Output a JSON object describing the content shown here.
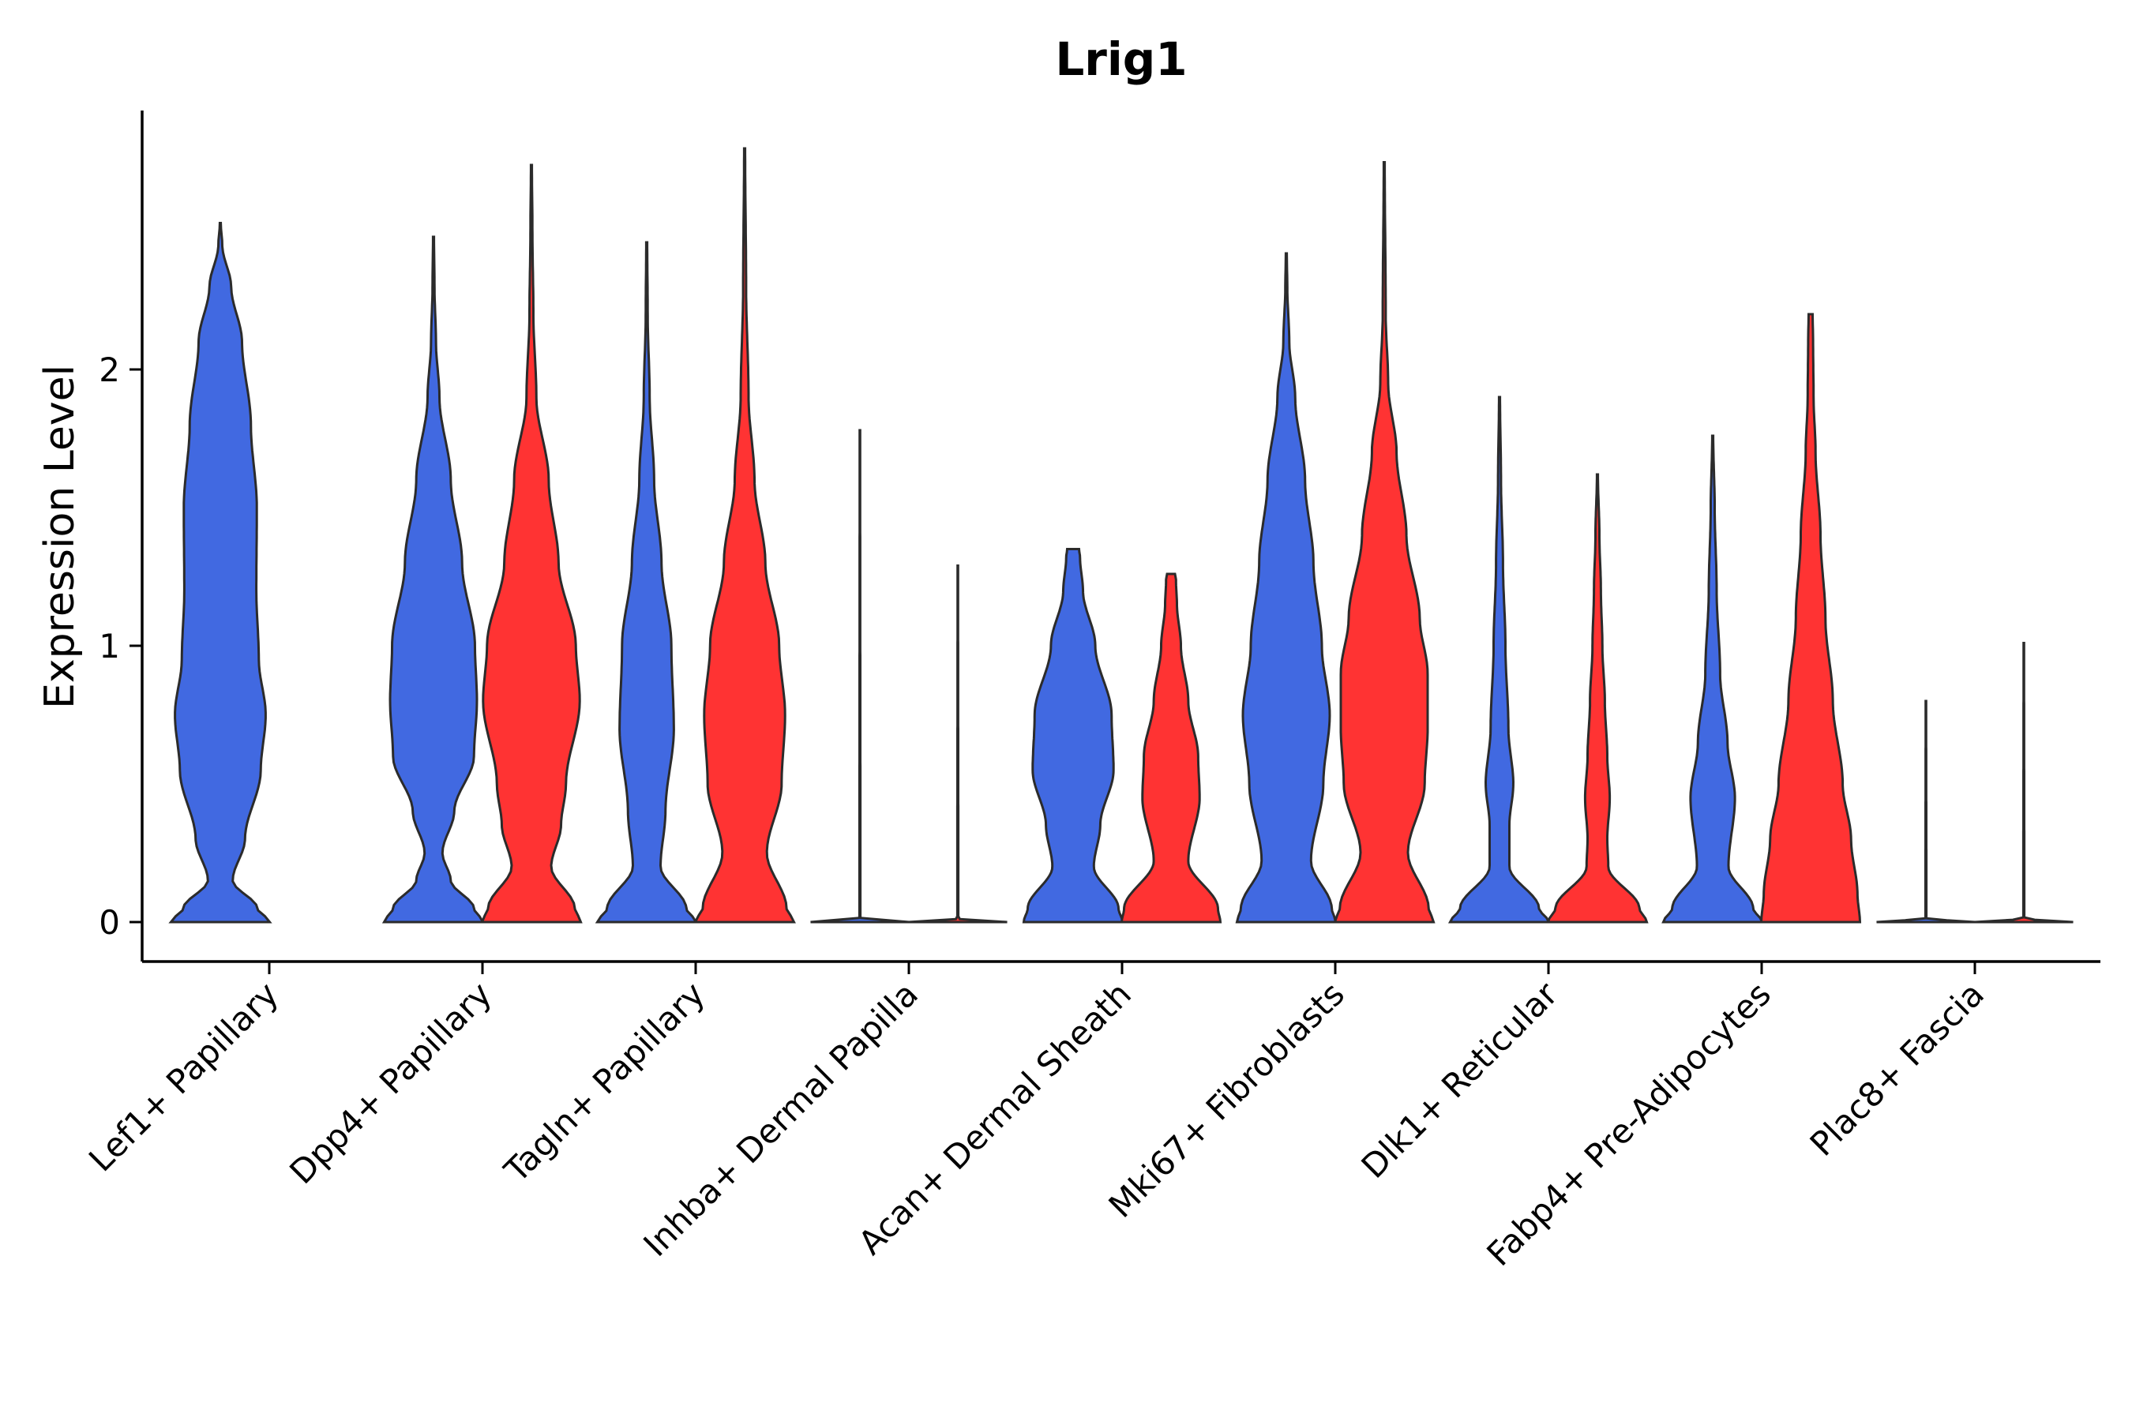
{
  "chart_data": {
    "type": "violin",
    "title": "Lrig1",
    "xlabel": "",
    "ylabel": "Expression Level",
    "ylim": [
      -0.14,
      2.95
    ],
    "yticks": [
      0,
      1,
      2
    ],
    "grid": false,
    "legend": "none",
    "colors": {
      "group1": "#4169E1",
      "group2": "#FF3333",
      "outline": "#2b2b2b"
    },
    "categories": [
      "Lef1+ Papillary",
      "Dpp4+ Papillary",
      "Tagln+ Papillary",
      "Inhba+ Dermal Papilla",
      "Acan+ Dermal Sheath",
      "Mki67+ Fibroblasts",
      "Dlk1+ Reticular",
      "Fabp4+ Pre-Adipocytes",
      "Plac8+ Fascia"
    ],
    "violins": [
      {
        "category": 0,
        "group": 1,
        "max": 2.53,
        "profile": [
          [
            0,
            1
          ],
          [
            0.05,
            0.75
          ],
          [
            0.15,
            0.25
          ],
          [
            0.3,
            0.5
          ],
          [
            0.55,
            0.82
          ],
          [
            0.75,
            0.92
          ],
          [
            0.95,
            0.78
          ],
          [
            1.2,
            0.73
          ],
          [
            1.5,
            0.74
          ],
          [
            1.8,
            0.62
          ],
          [
            2.1,
            0.44
          ],
          [
            2.3,
            0.22
          ],
          [
            2.45,
            0.04
          ],
          [
            2.53,
            0.01
          ]
        ]
      },
      {
        "category": 1,
        "group": 1,
        "max": 2.48,
        "profile": [
          [
            0,
            1
          ],
          [
            0.05,
            0.82
          ],
          [
            0.15,
            0.35
          ],
          [
            0.25,
            0.18
          ],
          [
            0.4,
            0.42
          ],
          [
            0.6,
            0.82
          ],
          [
            0.8,
            0.88
          ],
          [
            1.0,
            0.84
          ],
          [
            1.3,
            0.58
          ],
          [
            1.6,
            0.35
          ],
          [
            1.9,
            0.12
          ],
          [
            2.1,
            0.05
          ],
          [
            2.3,
            0.02
          ],
          [
            2.48,
            0.01
          ]
        ]
      },
      {
        "category": 1,
        "group": 2,
        "max": 2.74,
        "profile": [
          [
            0,
            1
          ],
          [
            0.05,
            0.88
          ],
          [
            0.2,
            0.4
          ],
          [
            0.35,
            0.6
          ],
          [
            0.5,
            0.7
          ],
          [
            0.8,
            0.98
          ],
          [
            1.0,
            0.9
          ],
          [
            1.3,
            0.55
          ],
          [
            1.6,
            0.35
          ],
          [
            1.9,
            0.1
          ],
          [
            2.2,
            0.04
          ],
          [
            2.5,
            0.02
          ],
          [
            2.74,
            0.01
          ]
        ]
      },
      {
        "category": 2,
        "group": 1,
        "max": 2.46,
        "profile": [
          [
            0,
            1
          ],
          [
            0.05,
            0.8
          ],
          [
            0.2,
            0.28
          ],
          [
            0.4,
            0.38
          ],
          [
            0.7,
            0.55
          ],
          [
            1.0,
            0.5
          ],
          [
            1.3,
            0.3
          ],
          [
            1.6,
            0.15
          ],
          [
            1.9,
            0.06
          ],
          [
            2.2,
            0.02
          ],
          [
            2.46,
            0.01
          ]
        ]
      },
      {
        "category": 2,
        "group": 2,
        "max": 2.8,
        "profile": [
          [
            0,
            1
          ],
          [
            0.05,
            0.85
          ],
          [
            0.25,
            0.45
          ],
          [
            0.5,
            0.75
          ],
          [
            0.75,
            0.82
          ],
          [
            1.0,
            0.7
          ],
          [
            1.3,
            0.42
          ],
          [
            1.6,
            0.2
          ],
          [
            1.9,
            0.08
          ],
          [
            2.3,
            0.03
          ],
          [
            2.8,
            0.01
          ]
        ]
      },
      {
        "category": 3,
        "group": 1,
        "max": 1.78,
        "profile": [
          [
            0,
            1
          ],
          [
            0.012,
            0.01
          ],
          [
            1.78,
            0.005
          ]
        ]
      },
      {
        "category": 3,
        "group": 2,
        "max": 1.29,
        "profile": [
          [
            0,
            1
          ],
          [
            0.012,
            0.01
          ],
          [
            1.29,
            0.005
          ]
        ]
      },
      {
        "category": 4,
        "group": 1,
        "max": 1.35,
        "profile": [
          [
            0,
            1
          ],
          [
            0.05,
            0.92
          ],
          [
            0.2,
            0.42
          ],
          [
            0.35,
            0.55
          ],
          [
            0.55,
            0.82
          ],
          [
            0.75,
            0.78
          ],
          [
            1.0,
            0.45
          ],
          [
            1.2,
            0.2
          ],
          [
            1.32,
            0.14
          ],
          [
            1.35,
            0.12
          ]
        ]
      },
      {
        "category": 4,
        "group": 2,
        "max": 1.26,
        "profile": [
          [
            0,
            1
          ],
          [
            0.05,
            0.95
          ],
          [
            0.22,
            0.35
          ],
          [
            0.45,
            0.58
          ],
          [
            0.6,
            0.55
          ],
          [
            0.8,
            0.35
          ],
          [
            1.0,
            0.2
          ],
          [
            1.15,
            0.12
          ],
          [
            1.24,
            0.1
          ],
          [
            1.26,
            0.08
          ]
        ]
      },
      {
        "category": 5,
        "group": 1,
        "max": 2.42,
        "profile": [
          [
            0,
            1
          ],
          [
            0.05,
            0.92
          ],
          [
            0.22,
            0.5
          ],
          [
            0.5,
            0.75
          ],
          [
            0.75,
            0.88
          ],
          [
            1.0,
            0.72
          ],
          [
            1.3,
            0.55
          ],
          [
            1.6,
            0.38
          ],
          [
            1.9,
            0.18
          ],
          [
            2.1,
            0.06
          ],
          [
            2.3,
            0.02
          ],
          [
            2.42,
            0.01
          ]
        ]
      },
      {
        "category": 5,
        "group": 2,
        "max": 2.75,
        "profile": [
          [
            0,
            1
          ],
          [
            0.05,
            0.9
          ],
          [
            0.25,
            0.48
          ],
          [
            0.5,
            0.82
          ],
          [
            0.7,
            0.88
          ],
          [
            0.9,
            0.88
          ],
          [
            1.1,
            0.72
          ],
          [
            1.4,
            0.45
          ],
          [
            1.7,
            0.25
          ],
          [
            1.95,
            0.08
          ],
          [
            2.2,
            0.03
          ],
          [
            2.75,
            0.01
          ]
        ]
      },
      {
        "category": 6,
        "group": 1,
        "max": 1.9,
        "profile": [
          [
            0,
            1
          ],
          [
            0.05,
            0.8
          ],
          [
            0.2,
            0.2
          ],
          [
            0.35,
            0.2
          ],
          [
            0.5,
            0.28
          ],
          [
            0.7,
            0.18
          ],
          [
            1.0,
            0.12
          ],
          [
            1.3,
            0.07
          ],
          [
            1.6,
            0.03
          ],
          [
            1.9,
            0.01
          ]
        ]
      },
      {
        "category": 6,
        "group": 2,
        "max": 1.62,
        "profile": [
          [
            0,
            1
          ],
          [
            0.05,
            0.85
          ],
          [
            0.2,
            0.22
          ],
          [
            0.3,
            0.2
          ],
          [
            0.45,
            0.25
          ],
          [
            0.6,
            0.2
          ],
          [
            0.8,
            0.15
          ],
          [
            1.0,
            0.1
          ],
          [
            1.2,
            0.07
          ],
          [
            1.4,
            0.04
          ],
          [
            1.62,
            0.01
          ]
        ]
      },
      {
        "category": 7,
        "group": 1,
        "max": 1.76,
        "profile": [
          [
            0,
            1
          ],
          [
            0.05,
            0.82
          ],
          [
            0.2,
            0.32
          ],
          [
            0.45,
            0.45
          ],
          [
            0.65,
            0.3
          ],
          [
            0.9,
            0.15
          ],
          [
            1.2,
            0.08
          ],
          [
            1.5,
            0.04
          ],
          [
            1.76,
            0.01
          ]
        ]
      },
      {
        "category": 7,
        "group": 2,
        "max": 2.2,
        "profile": [
          [
            0,
            1
          ],
          [
            0.1,
            0.95
          ],
          [
            0.3,
            0.82
          ],
          [
            0.5,
            0.65
          ],
          [
            0.8,
            0.45
          ],
          [
            1.1,
            0.3
          ],
          [
            1.4,
            0.2
          ],
          [
            1.7,
            0.1
          ],
          [
            1.9,
            0.06
          ],
          [
            2.1,
            0.05
          ],
          [
            2.2,
            0.04
          ]
        ]
      },
      {
        "category": 8,
        "group": 1,
        "max": 0.8,
        "profile": [
          [
            0,
            1
          ],
          [
            0.012,
            0.01
          ],
          [
            0.8,
            0.005
          ]
        ]
      },
      {
        "category": 8,
        "group": 2,
        "max": 1.01,
        "profile": [
          [
            0,
            1
          ],
          [
            0.012,
            0.01
          ],
          [
            1.01,
            0.005
          ]
        ]
      }
    ]
  }
}
